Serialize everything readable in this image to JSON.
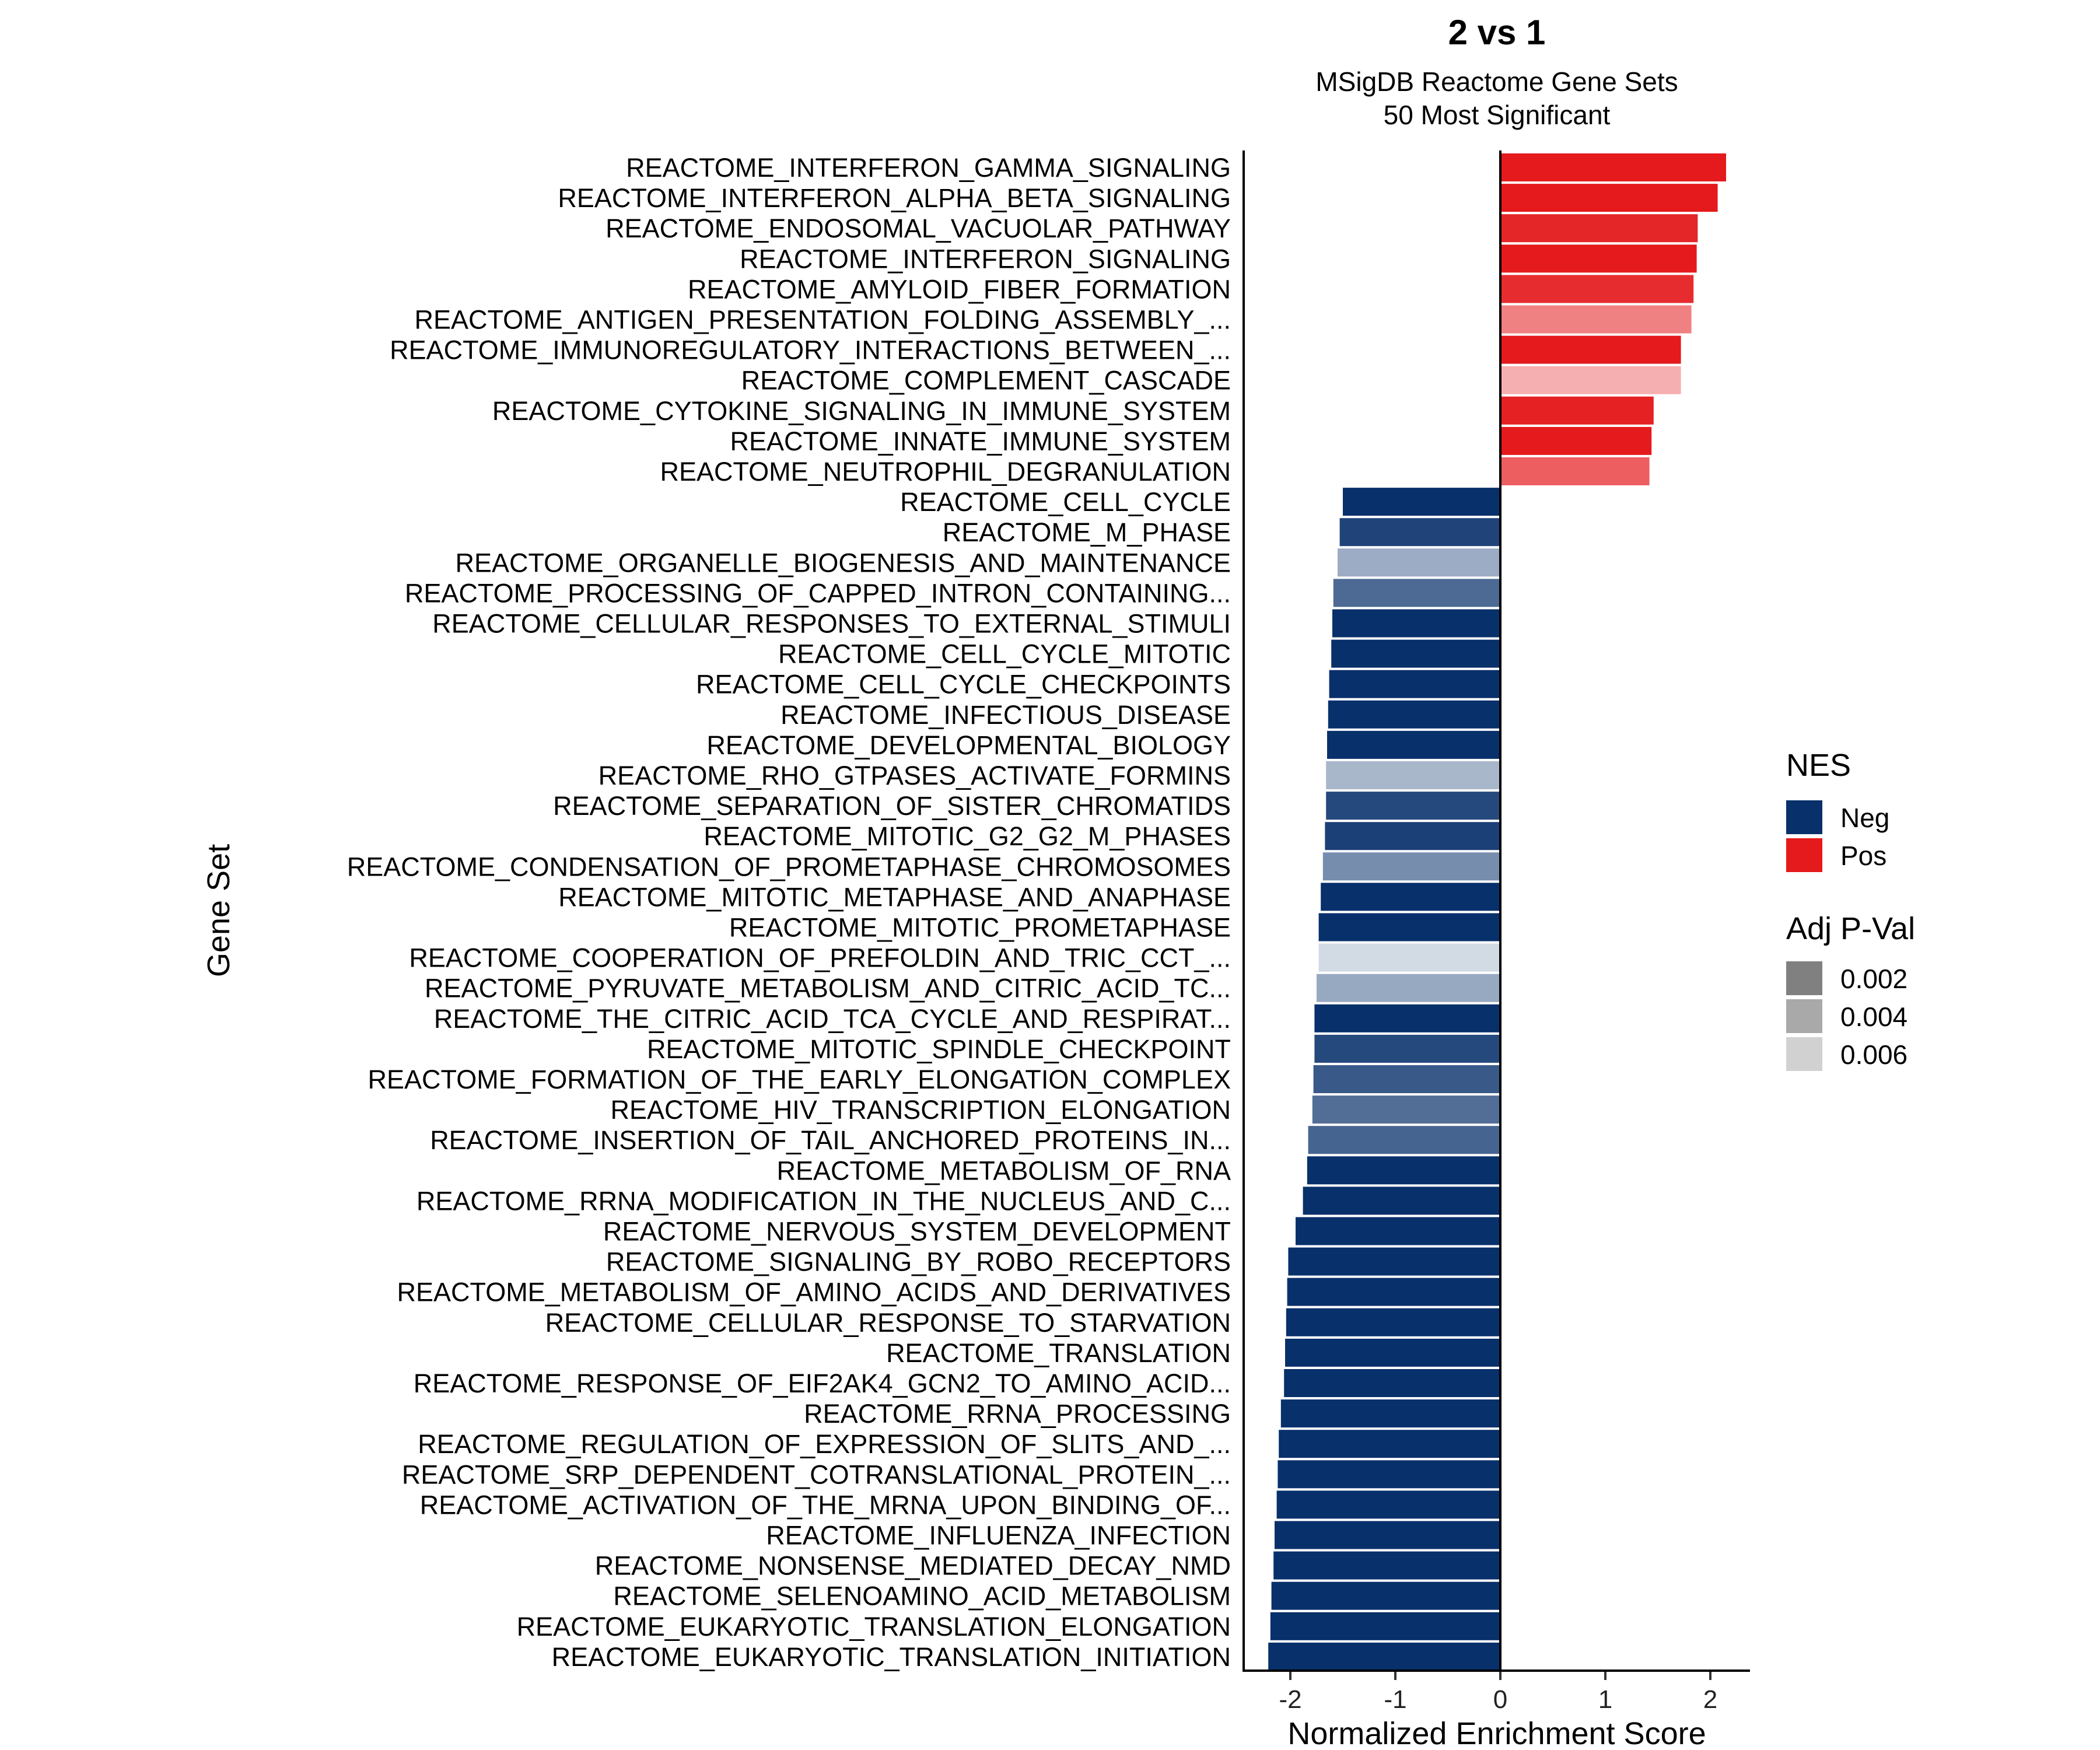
{
  "chart_data": {
    "type": "bar",
    "orientation": "horizontal",
    "title": "2 vs 1",
    "subtitle_lines": [
      "MSigDB Reactome Gene Sets",
      "50 Most Significant"
    ],
    "xlabel": "Normalized Enrichment Score",
    "ylabel": "Gene Set",
    "xlim": [
      -2.45,
      2.4
    ],
    "xticks": [
      -2,
      -1,
      0,
      1,
      2
    ],
    "xtick_labels": [
      "-2",
      "-1",
      "0",
      "1",
      "2"
    ],
    "colors": {
      "Neg": "#08306b",
      "Pos": "#e41a1c",
      "padj_grey": "#808080"
    },
    "legend": {
      "placement": "right",
      "nes_title": "NES",
      "nes_entries": [
        "Neg",
        "Pos"
      ],
      "padj_title": "Adj P-Val",
      "padj_entries": [
        "0.002",
        "0.004",
        "0.006"
      ],
      "padj_alphas": [
        1.0,
        0.68,
        0.36
      ]
    },
    "categories": [
      "REACTOME_INTERFERON_GAMMA_SIGNALING",
      "REACTOME_INTERFERON_ALPHA_BETA_SIGNALING",
      "REACTOME_ENDOSOMAL_VACUOLAR_PATHWAY",
      "REACTOME_INTERFERON_SIGNALING",
      "REACTOME_AMYLOID_FIBER_FORMATION",
      "REACTOME_ANTIGEN_PRESENTATION_FOLDING_ASSEMBLY_...",
      "REACTOME_IMMUNOREGULATORY_INTERACTIONS_BETWEEN_...",
      "REACTOME_COMPLEMENT_CASCADE",
      "REACTOME_CYTOKINE_SIGNALING_IN_IMMUNE_SYSTEM",
      "REACTOME_INNATE_IMMUNE_SYSTEM",
      "REACTOME_NEUTROPHIL_DEGRANULATION",
      "REACTOME_CELL_CYCLE",
      "REACTOME_M_PHASE",
      "REACTOME_ORGANELLE_BIOGENESIS_AND_MAINTENANCE",
      "REACTOME_PROCESSING_OF_CAPPED_INTRON_CONTAINING...",
      "REACTOME_CELLULAR_RESPONSES_TO_EXTERNAL_STIMULI",
      "REACTOME_CELL_CYCLE_MITOTIC",
      "REACTOME_CELL_CYCLE_CHECKPOINTS",
      "REACTOME_INFECTIOUS_DISEASE",
      "REACTOME_DEVELOPMENTAL_BIOLOGY",
      "REACTOME_RHO_GTPASES_ACTIVATE_FORMINS",
      "REACTOME_SEPARATION_OF_SISTER_CHROMATIDS",
      "REACTOME_MITOTIC_G2_G2_M_PHASES",
      "REACTOME_CONDENSATION_OF_PROMETAPHASE_CHROMOSOMES",
      "REACTOME_MITOTIC_METAPHASE_AND_ANAPHASE",
      "REACTOME_MITOTIC_PROMETAPHASE",
      "REACTOME_COOPERATION_OF_PREFOLDIN_AND_TRIC_CCT_...",
      "REACTOME_PYRUVATE_METABOLISM_AND_CITRIC_ACID_TC...",
      "REACTOME_THE_CITRIC_ACID_TCA_CYCLE_AND_RESPIRAT...",
      "REACTOME_MITOTIC_SPINDLE_CHECKPOINT",
      "REACTOME_FORMATION_OF_THE_EARLY_ELONGATION_COMPLEX",
      "REACTOME_HIV_TRANSCRIPTION_ELONGATION",
      "REACTOME_INSERTION_OF_TAIL_ANCHORED_PROTEINS_IN...",
      "REACTOME_METABOLISM_OF_RNA",
      "REACTOME_RRNA_MODIFICATION_IN_THE_NUCLEUS_AND_C...",
      "REACTOME_NERVOUS_SYSTEM_DEVELOPMENT",
      "REACTOME_SIGNALING_BY_ROBO_RECEPTORS",
      "REACTOME_METABOLISM_OF_AMINO_ACIDS_AND_DERIVATIVES",
      "REACTOME_CELLULAR_RESPONSE_TO_STARVATION",
      "REACTOME_TRANSLATION",
      "REACTOME_RESPONSE_OF_EIF2AK4_GCN2_TO_AMINO_ACID...",
      "REACTOME_RRNA_PROCESSING",
      "REACTOME_REGULATION_OF_EXPRESSION_OF_SLITS_AND_...",
      "REACTOME_SRP_DEPENDENT_COTRANSLATIONAL_PROTEIN_...",
      "REACTOME_ACTIVATION_OF_THE_MRNA_UPON_BINDING_OF...",
      "REACTOME_INFLUENZA_INFECTION",
      "REACTOME_NONSENSE_MEDIATED_DECAY_NMD",
      "REACTOME_SELENOAMINO_ACID_METABOLISM",
      "REACTOME_EUKARYOTIC_TRANSLATION_ELONGATION",
      "REACTOME_EUKARYOTIC_TRANSLATION_INITIATION"
    ],
    "values": [
      2.15,
      2.07,
      1.88,
      1.87,
      1.84,
      1.82,
      1.72,
      1.72,
      1.46,
      1.44,
      1.42,
      -1.5,
      -1.53,
      -1.55,
      -1.59,
      -1.6,
      -1.61,
      -1.63,
      -1.64,
      -1.65,
      -1.66,
      -1.66,
      -1.67,
      -1.69,
      -1.71,
      -1.73,
      -1.73,
      -1.75,
      -1.77,
      -1.77,
      -1.78,
      -1.79,
      -1.83,
      -1.84,
      -1.88,
      -1.95,
      -2.02,
      -2.03,
      -2.04,
      -2.05,
      -2.06,
      -2.09,
      -2.11,
      -2.12,
      -2.13,
      -2.15,
      -2.16,
      -2.18,
      -2.19,
      -2.21
    ],
    "alphas": [
      1.0,
      1.0,
      0.95,
      1.0,
      0.92,
      0.55,
      1.0,
      0.35,
      0.97,
      1.0,
      0.7,
      1.0,
      0.9,
      0.4,
      0.72,
      1.0,
      1.0,
      1.0,
      1.0,
      1.0,
      0.35,
      0.88,
      0.92,
      0.55,
      1.0,
      1.0,
      0.18,
      0.42,
      1.0,
      0.88,
      0.8,
      0.7,
      0.75,
      1.0,
      1.0,
      1.0,
      1.0,
      1.0,
      1.0,
      1.0,
      1.0,
      1.0,
      1.0,
      1.0,
      1.0,
      1.0,
      1.0,
      1.0,
      1.0,
      1.0
    ]
  }
}
